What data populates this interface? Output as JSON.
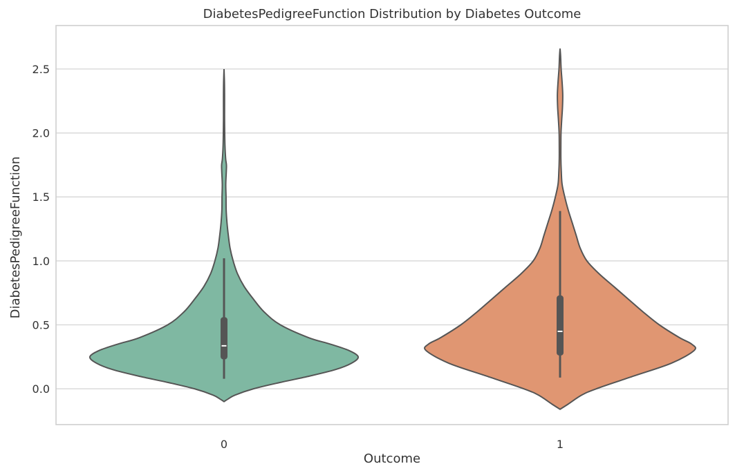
{
  "chart_data": {
    "type": "violin",
    "title": "DiabetesPedigreeFunction Distribution by Diabetes Outcome",
    "xlabel": "Outcome",
    "ylabel": "DiabetesPedigreeFunction",
    "ylim": [
      -0.28,
      2.84
    ],
    "yticks": [
      0.0,
      0.5,
      1.0,
      1.5,
      2.0,
      2.5
    ],
    "ytick_labels": [
      "0.0",
      "0.5",
      "1.0",
      "1.5",
      "2.0",
      "2.5"
    ],
    "grid": true,
    "categories": [
      "0",
      "1"
    ],
    "colors": [
      "#7fb8a2",
      "#e09672"
    ],
    "box_color": "#555555",
    "median_color": "#ffffff",
    "series": [
      {
        "category": "0",
        "min": 0.078,
        "q1": 0.23,
        "median": 0.336,
        "q3": 0.56,
        "max": 1.02,
        "density": [
          [
            -0.1,
            0.0
          ],
          [
            -0.08,
            0.03
          ],
          [
            -0.05,
            0.08
          ],
          [
            0.0,
            0.22
          ],
          [
            0.05,
            0.42
          ],
          [
            0.1,
            0.64
          ],
          [
            0.15,
            0.83
          ],
          [
            0.2,
            0.95
          ],
          [
            0.25,
            1.0
          ],
          [
            0.3,
            0.93
          ],
          [
            0.35,
            0.79
          ],
          [
            0.4,
            0.63
          ],
          [
            0.5,
            0.42
          ],
          [
            0.6,
            0.3
          ],
          [
            0.7,
            0.22
          ],
          [
            0.8,
            0.15
          ],
          [
            0.9,
            0.1
          ],
          [
            1.0,
            0.068
          ],
          [
            1.1,
            0.045
          ],
          [
            1.2,
            0.032
          ],
          [
            1.3,
            0.022
          ],
          [
            1.4,
            0.016
          ],
          [
            1.5,
            0.015
          ],
          [
            1.6,
            0.013
          ],
          [
            1.7,
            0.017
          ],
          [
            1.75,
            0.018
          ],
          [
            1.8,
            0.012
          ],
          [
            1.9,
            0.007
          ],
          [
            2.0,
            0.005
          ],
          [
            2.1,
            0.004
          ],
          [
            2.2,
            0.004
          ],
          [
            2.3,
            0.004
          ],
          [
            2.4,
            0.003
          ],
          [
            2.5,
            0.0
          ]
        ]
      },
      {
        "category": "1",
        "min": 0.088,
        "q1": 0.26,
        "median": 0.449,
        "q3": 0.73,
        "max": 1.39,
        "density": [
          [
            -0.16,
            0.0
          ],
          [
            -0.12,
            0.06
          ],
          [
            -0.05,
            0.16
          ],
          [
            0.0,
            0.27
          ],
          [
            0.1,
            0.55
          ],
          [
            0.2,
            0.83
          ],
          [
            0.3,
            1.0
          ],
          [
            0.35,
            0.98
          ],
          [
            0.4,
            0.89
          ],
          [
            0.5,
            0.74
          ],
          [
            0.6,
            0.62
          ],
          [
            0.7,
            0.51
          ],
          [
            0.8,
            0.4
          ],
          [
            0.9,
            0.29
          ],
          [
            1.0,
            0.2
          ],
          [
            1.1,
            0.15
          ],
          [
            1.2,
            0.12
          ],
          [
            1.3,
            0.09
          ],
          [
            1.4,
            0.06
          ],
          [
            1.5,
            0.035
          ],
          [
            1.6,
            0.015
          ],
          [
            1.7,
            0.009
          ],
          [
            1.8,
            0.006
          ],
          [
            1.9,
            0.006
          ],
          [
            2.0,
            0.007
          ],
          [
            2.1,
            0.012
          ],
          [
            2.2,
            0.018
          ],
          [
            2.3,
            0.02
          ],
          [
            2.4,
            0.015
          ],
          [
            2.5,
            0.008
          ],
          [
            2.6,
            0.004
          ],
          [
            2.66,
            0.0
          ]
        ]
      }
    ]
  }
}
